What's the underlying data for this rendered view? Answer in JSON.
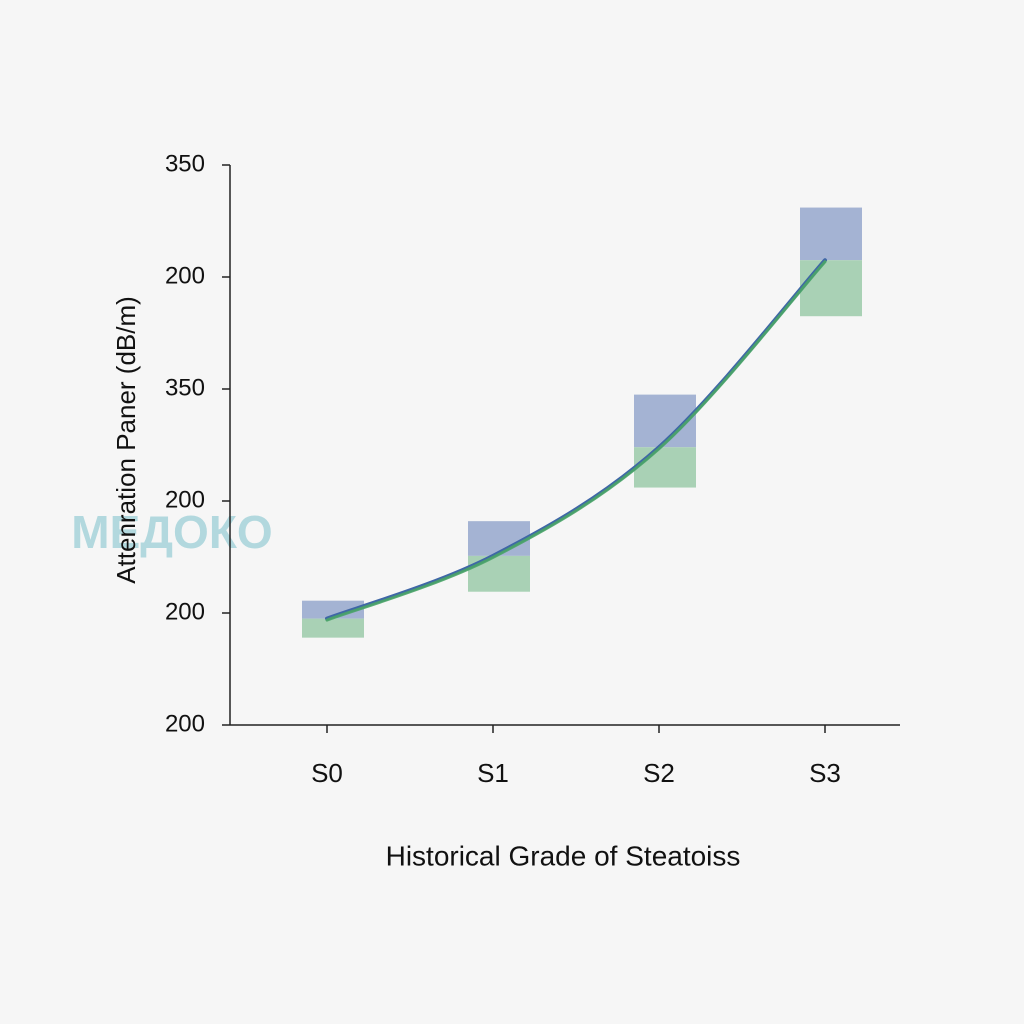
{
  "chart_data": {
    "type": "line",
    "watermark": "МЕДОКО",
    "x_label": "Historical Grade of Steatoiss",
    "y_label": "Attenration Paner (dB/m)",
    "categories": [
      "S0",
      "S1",
      "S2",
      "S3"
    ],
    "values": [
      0.95,
      1.51,
      2.48,
      4.15
    ],
    "upper": [
      1.11,
      1.82,
      2.95,
      4.62
    ],
    "lower": [
      0.78,
      1.19,
      2.12,
      3.65
    ],
    "line_colors": [
      "#3f67a6",
      "#4aa567"
    ],
    "range_colors": [
      "#a4b3d3",
      "#a9d1b5"
    ],
    "ylim": [
      0,
      5
    ],
    "yticks": [
      {
        "value": 0,
        "label": "200"
      },
      {
        "value": 1,
        "label": "200"
      },
      {
        "value": 2,
        "label": "200"
      },
      {
        "value": 3,
        "label": "350"
      },
      {
        "value": 4,
        "label": "200"
      },
      {
        "value": 5,
        "label": "350"
      }
    ]
  }
}
